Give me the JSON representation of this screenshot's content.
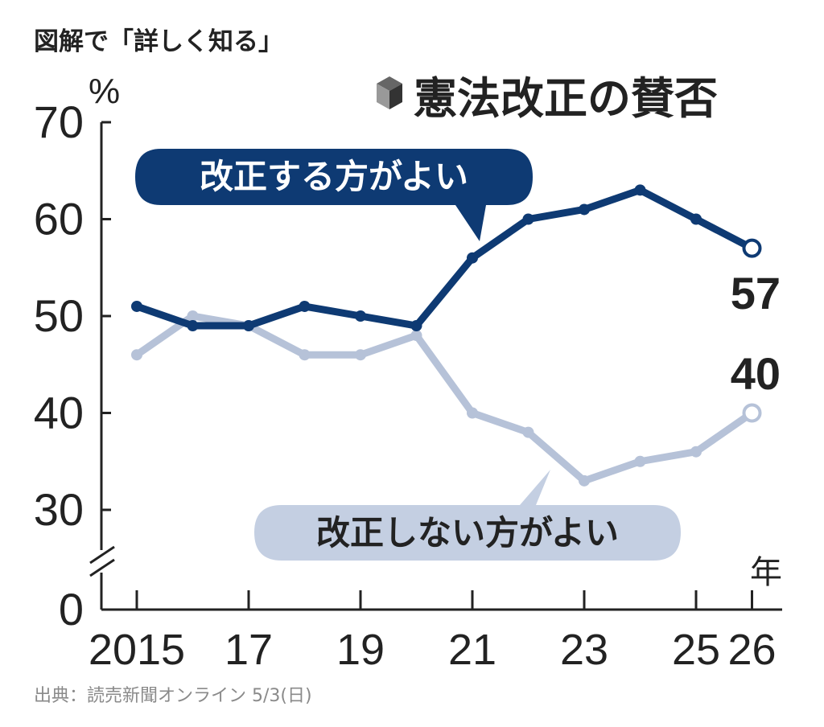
{
  "header": {
    "title": "図解で「詳しく知る」"
  },
  "footer": {
    "source": "出典：読売新聞オンライン 5/3(日)"
  },
  "colors": {
    "primary": "#0e3a73",
    "secondary": "#b6c2d8",
    "secondary_fill": "#c4cfe2",
    "axis": "#222222",
    "text": "#222222",
    "caption": "#8a8a8a"
  },
  "chart_data": {
    "type": "line",
    "title": "憲法改正の賛否",
    "title_icon": "cube-icon",
    "y_unit": "%",
    "x_unit": "年",
    "ylim": [
      0,
      70
    ],
    "y_ticks": [
      {
        "value": 0,
        "label": "0"
      },
      {
        "value": 30,
        "label": "30"
      },
      {
        "value": 40,
        "label": "40"
      },
      {
        "value": 50,
        "label": "50"
      },
      {
        "value": 60,
        "label": "60"
      },
      {
        "value": 70,
        "label": "70"
      }
    ],
    "y_axis_break": [
      0,
      30
    ],
    "x": [
      2015,
      2016,
      2017,
      2018,
      2019,
      2020,
      2021,
      2022,
      2023,
      2024,
      2025,
      2026
    ],
    "x_ticks": [
      {
        "value": 2015,
        "label": "2015"
      },
      {
        "value": 2017,
        "label": "17"
      },
      {
        "value": 2019,
        "label": "19"
      },
      {
        "value": 2021,
        "label": "21"
      },
      {
        "value": 2023,
        "label": "23"
      },
      {
        "value": 2025,
        "label": "25"
      },
      {
        "value": 2026,
        "label": "26"
      }
    ],
    "series": [
      {
        "name": "改正する方がよい",
        "color": "#0e3a73",
        "values": [
          51,
          49,
          49,
          51,
          50,
          49,
          56,
          60,
          61,
          63,
          60,
          57
        ],
        "end_label": "57"
      },
      {
        "name": "改正しない方がよい",
        "color": "#b6c2d8",
        "values": [
          46,
          50,
          49,
          46,
          46,
          48,
          40,
          38,
          33,
          35,
          36,
          40
        ],
        "end_label": "40"
      }
    ],
    "grid": false,
    "legend": "callout labels on lines"
  }
}
